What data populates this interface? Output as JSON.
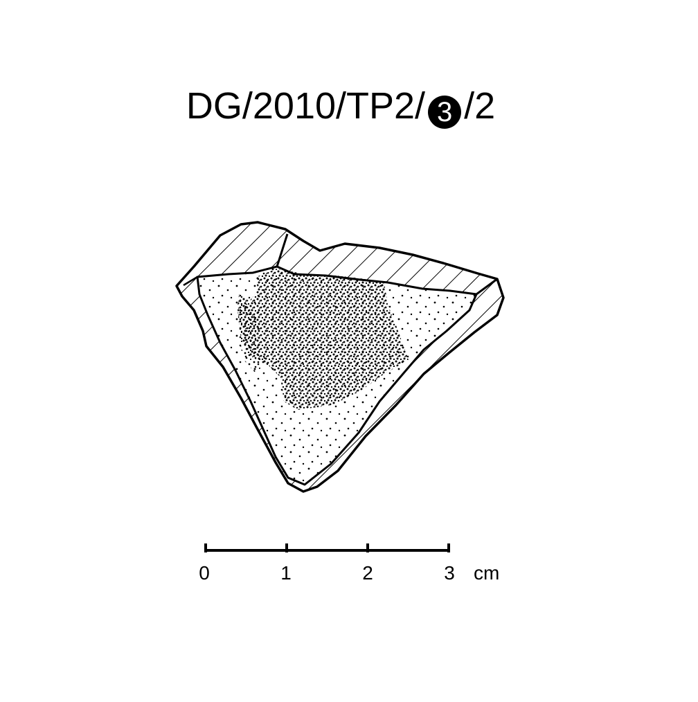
{
  "title": {
    "prefix": "DG/2010/TP2/",
    "circled_number": "3",
    "suffix": "/2"
  },
  "scale_bar": {
    "ticks": [
      "0",
      "1",
      "2",
      "3"
    ],
    "unit": "cm"
  },
  "colors": {
    "ink": "#000000",
    "paper": "#ffffff"
  }
}
